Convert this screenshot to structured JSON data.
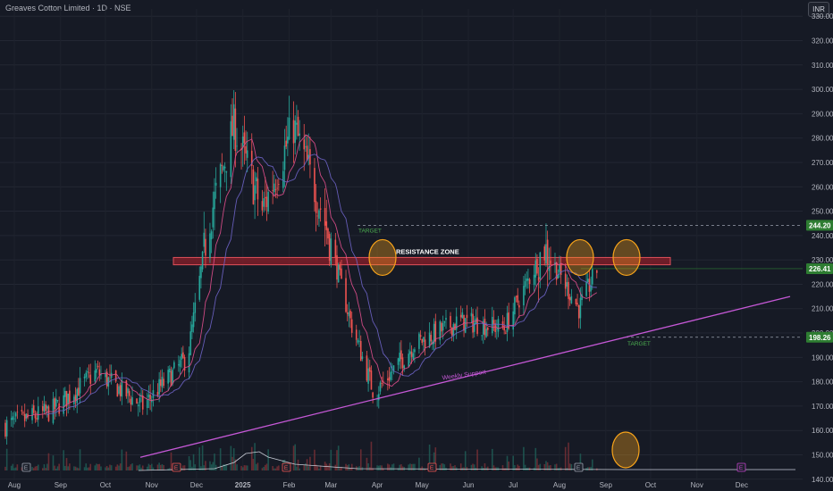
{
  "header": {
    "title": "Greaves Cotton Limited · 1D · NSE",
    "currency": "INR"
  },
  "colors": {
    "up": "#26a69a",
    "down": "#ef5350",
    "trendline": "#c558d6",
    "resistance_fill": "#8b1f2a",
    "ellipse": "#f7a31a",
    "ma_fast": "#e04f8d",
    "ma_slow": "#6e64c8",
    "bg": "#161a25"
  },
  "chart_data": {
    "type": "candlestick",
    "y_ticks": [
      "330.00",
      "320.00",
      "310.00",
      "300.00",
      "290.00",
      "280.00",
      "270.00",
      "260.00",
      "250.00",
      "240.00",
      "230.00",
      "220.00",
      "210.00",
      "200.00",
      "190.00",
      "180.00",
      "170.00",
      "160.00",
      "150.00",
      "140.00"
    ],
    "ylim": [
      137,
      333
    ],
    "x_labels": [
      "Aug",
      "Sep",
      "Oct",
      "Nov",
      "Dec",
      "2025",
      "Feb",
      "Mar",
      "Apr",
      "May",
      "Jun",
      "Jul",
      "Aug",
      "Sep",
      "Oct",
      "Nov",
      "Dec"
    ],
    "price_badges": [
      {
        "value": "244.20",
        "color": "#2e7d32"
      },
      {
        "value": "226.41",
        "color": "#2e7d32"
      },
      {
        "value": "198.26",
        "color": "#2e7d32"
      }
    ],
    "annotations": {
      "resistance_zone": "RESISTANCE ZONE",
      "resistance_range": [
        228,
        231
      ],
      "support_label": "Weekly Support",
      "target_upper": "TARGET",
      "target_lower": "TARGET"
    },
    "event_markers": [
      "E",
      "E",
      "E",
      "E",
      "E",
      "E"
    ],
    "approx_close_path": [
      {
        "d": "2024-08-01",
        "c": 162
      },
      {
        "d": "2024-09-01",
        "c": 168
      },
      {
        "d": "2024-10-01",
        "c": 184
      },
      {
        "d": "2024-11-01",
        "c": 170
      },
      {
        "d": "2024-12-01",
        "c": 190
      },
      {
        "d": "2024-12-15",
        "c": 245
      },
      {
        "d": "2025-01-01",
        "c": 285
      },
      {
        "d": "2025-01-20",
        "c": 250
      },
      {
        "d": "2025-02-10",
        "c": 285
      },
      {
        "d": "2025-03-01",
        "c": 250
      },
      {
        "d": "2025-03-20",
        "c": 205
      },
      {
        "d": "2025-04-05",
        "c": 175
      },
      {
        "d": "2025-05-01",
        "c": 195
      },
      {
        "d": "2025-06-01",
        "c": 205
      },
      {
        "d": "2025-07-01",
        "c": 202
      },
      {
        "d": "2025-07-28",
        "c": 235
      },
      {
        "d": "2025-08-20",
        "c": 210
      },
      {
        "d": "2025-09-01",
        "c": 226
      }
    ]
  }
}
